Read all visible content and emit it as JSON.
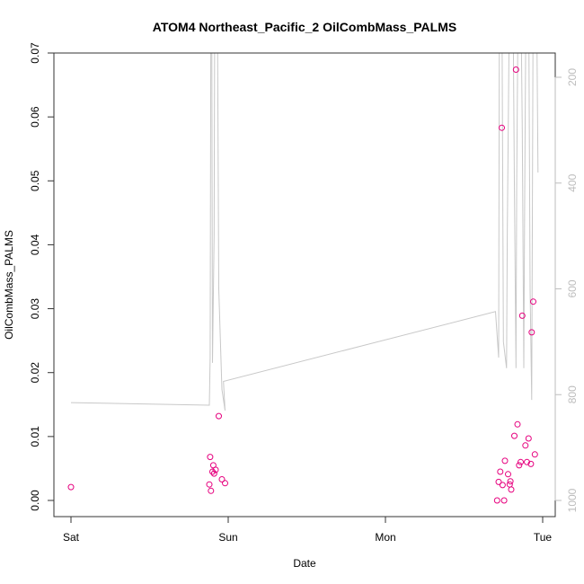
{
  "chart_data": {
    "type": "scatter",
    "title": "ATOM4 Northeast_Pacific_2 OilCombMass_PALMS",
    "xlabel": "Date",
    "ylabel": "OilCombMass_PALMS",
    "x_ticks": [
      {
        "value": 0,
        "label": "Sat"
      },
      {
        "value": 1,
        "label": "Sun"
      },
      {
        "value": 2,
        "label": "Mon"
      },
      {
        "value": 3,
        "label": "Tue"
      }
    ],
    "xlim": [
      0,
      3
    ],
    "ylim": [
      0,
      0.07
    ],
    "y_ticks": [
      0.0,
      0.01,
      0.02,
      0.03,
      0.04,
      0.05,
      0.06,
      0.07
    ],
    "y_tick_labels": [
      "0.00",
      "0.01",
      "0.02",
      "0.03",
      "0.04",
      "0.05",
      "0.06",
      "0.07"
    ],
    "secondary_axis": {
      "ticks": [
        200,
        400,
        600,
        800,
        1000
      ],
      "tick_labels": [
        "200",
        "400",
        "600",
        "800",
        "1000"
      ],
      "reversed": true,
      "color": "#bdbdbd"
    },
    "series": [
      {
        "color": "#e6007e",
        "marker": "open-circle",
        "points": [
          [
            0.0,
            0.0021
          ],
          [
            0.88,
            0.0025
          ],
          [
            0.885,
            0.0068
          ],
          [
            0.89,
            0.0015
          ],
          [
            0.9,
            0.0045
          ],
          [
            0.905,
            0.0055
          ],
          [
            0.91,
            0.0042
          ],
          [
            0.92,
            0.0048
          ],
          [
            0.94,
            0.0132
          ],
          [
            0.96,
            0.0033
          ],
          [
            0.98,
            0.0027
          ],
          [
            2.71,
            0.0
          ],
          [
            2.72,
            0.0029
          ],
          [
            2.73,
            0.0045
          ],
          [
            2.74,
            0.0583
          ],
          [
            2.745,
            0.0024
          ],
          [
            2.755,
            0.0
          ],
          [
            2.76,
            0.0062
          ],
          [
            2.78,
            0.0041
          ],
          [
            2.79,
            0.0025
          ],
          [
            2.795,
            0.003
          ],
          [
            2.8,
            0.0017
          ],
          [
            2.82,
            0.0101
          ],
          [
            2.83,
            0.0674
          ],
          [
            2.84,
            0.0119
          ],
          [
            2.85,
            0.0055
          ],
          [
            2.86,
            0.006
          ],
          [
            2.87,
            0.0289
          ],
          [
            2.89,
            0.0086
          ],
          [
            2.9,
            0.006
          ],
          [
            2.91,
            0.0097
          ],
          [
            2.925,
            0.0057
          ],
          [
            2.93,
            0.0263
          ],
          [
            2.94,
            0.0311
          ],
          [
            2.95,
            0.0072
          ]
        ]
      }
    ],
    "altitude_trace": {
      "color": "#c8c8c8",
      "axis": "secondary",
      "points": [
        [
          0.0,
          815
        ],
        [
          0.88,
          820
        ],
        [
          0.885,
          730
        ],
        [
          0.89,
          0
        ],
        [
          0.895,
          0
        ],
        [
          0.9,
          740
        ],
        [
          0.91,
          500
        ],
        [
          0.915,
          0
        ],
        [
          0.93,
          0
        ],
        [
          0.94,
          600
        ],
        [
          0.96,
          790
        ],
        [
          0.98,
          830
        ],
        [
          0.97,
          775
        ],
        [
          2.7,
          643
        ],
        [
          2.72,
          730
        ],
        [
          2.725,
          0
        ],
        [
          2.74,
          0
        ],
        [
          2.75,
          700
        ],
        [
          2.77,
          750
        ],
        [
          2.775,
          500
        ],
        [
          2.79,
          0
        ],
        [
          2.81,
          0
        ],
        [
          2.82,
          400
        ],
        [
          2.83,
          750
        ],
        [
          2.835,
          400
        ],
        [
          2.845,
          0
        ],
        [
          2.86,
          0
        ],
        [
          2.87,
          300
        ],
        [
          2.88,
          750
        ],
        [
          2.885,
          450
        ],
        [
          2.895,
          0
        ],
        [
          2.91,
          0
        ],
        [
          2.92,
          600
        ],
        [
          2.93,
          810
        ],
        [
          2.94,
          0
        ],
        [
          2.96,
          0
        ],
        [
          2.97,
          380
        ]
      ]
    }
  }
}
